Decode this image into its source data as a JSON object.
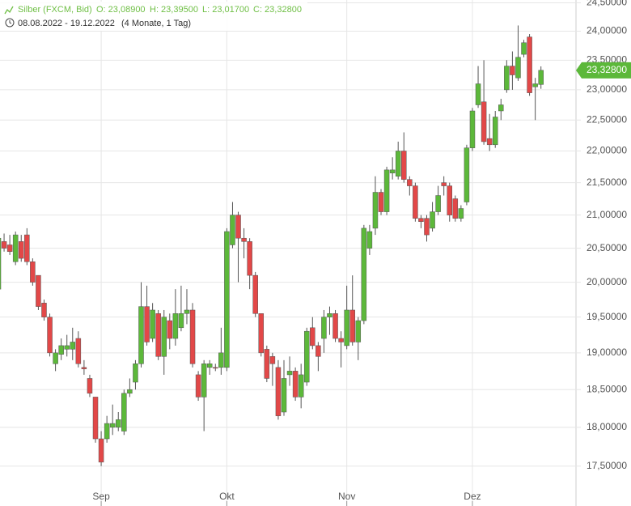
{
  "header": {
    "name": "Silber (FXCM, Bid)",
    "ohlc": [
      "O: 23,08900",
      "H: 23,39500",
      "L: 23,01700",
      "C: 23,32800"
    ],
    "range": "08.08.2022 - 19.12.2022",
    "period": "(4 Monate, 1 Tag)"
  },
  "chart_data": {
    "type": "candlestick",
    "log_scale": true,
    "grid": true,
    "up_color": "#5cb83a",
    "down_color": "#e24848",
    "categories": [
      null,
      null,
      null,
      null,
      null,
      null,
      null,
      null,
      null,
      null,
      null,
      null,
      null,
      null,
      null,
      null,
      null,
      null,
      "Sep",
      null,
      null,
      null,
      null,
      null,
      null,
      null,
      null,
      null,
      null,
      null,
      null,
      null,
      null,
      null,
      null,
      null,
      null,
      null,
      null,
      null,
      "Okt",
      null,
      null,
      null,
      null,
      null,
      null,
      null,
      null,
      null,
      null,
      null,
      null,
      null,
      null,
      null,
      null,
      null,
      null,
      null,
      null,
      "Nov",
      null,
      null,
      null,
      null,
      null,
      null,
      null,
      null,
      null,
      null,
      null,
      null,
      null,
      null,
      null,
      null,
      null,
      null,
      null,
      null,
      null,
      "Dez",
      null,
      null,
      null,
      null,
      null,
      null,
      null,
      null,
      null,
      null,
      null,
      null
    ],
    "open": [
      19.9,
      20.6,
      20.55,
      20.3,
      20.6,
      20.7,
      20.3,
      20.1,
      19.7,
      19.5,
      18.85,
      18.98,
      19.05,
      19.05,
      19.2,
      18.8,
      18.65,
      18.4,
      17.85,
      17.85,
      18.0,
      18.0,
      17.95,
      18.45,
      18.6,
      18.85,
      19.65,
      19.2,
      19.55,
      18.95,
      19.45,
      19.2,
      19.35,
      19.55,
      19.6,
      18.7,
      18.4,
      18.8,
      18.8,
      18.8,
      18.8,
      20.55,
      21.0,
      20.65,
      20.6,
      20.1,
      19.55,
      19.05,
      18.95,
      18.8,
      18.2,
      18.7,
      18.75,
      18.4,
      18.6,
      19.35,
      19.1,
      19.2,
      19.5,
      19.55,
      19.2,
      19.1,
      19.6,
      19.15,
      19.45,
      20.5,
      20.8,
      21.35,
      21.05,
      21.65,
      21.6,
      22.0,
      21.55,
      21.45,
      20.95,
      20.95,
      20.8,
      21.05,
      21.5,
      21.45,
      21.25,
      20.95,
      21.2,
      22.05,
      22.75,
      22.8,
      22.2,
      22.1,
      22.65,
      23.0,
      23.4,
      23.2,
      23.6,
      23.9,
      23.05,
      23.089
    ],
    "high": [
      20.7,
      20.72,
      20.7,
      20.75,
      20.7,
      20.8,
      20.35,
      20.1,
      19.75,
      19.55,
      19.05,
      19.2,
      19.25,
      19.35,
      19.3,
      18.9,
      18.7,
      18.4,
      17.95,
      18.15,
      18.3,
      18.2,
      18.5,
      18.65,
      18.9,
      20.0,
      19.95,
      19.7,
      19.6,
      19.6,
      19.55,
      19.9,
      19.95,
      19.9,
      19.7,
      18.75,
      18.9,
      18.9,
      18.85,
      19.35,
      20.8,
      21.2,
      21.05,
      20.8,
      20.65,
      20.15,
      19.55,
      19.1,
      19.0,
      18.9,
      18.9,
      18.95,
      18.8,
      18.85,
      19.35,
      19.5,
      19.15,
      19.6,
      19.65,
      19.6,
      19.3,
      19.95,
      20.1,
      19.5,
      20.85,
      20.85,
      21.6,
      21.4,
      21.75,
      21.9,
      22.15,
      22.3,
      21.6,
      21.5,
      21.0,
      21.0,
      21.2,
      21.45,
      21.6,
      21.5,
      21.3,
      21.15,
      22.1,
      22.7,
      23.4,
      23.5,
      22.6,
      22.65,
      22.85,
      23.5,
      23.65,
      24.1,
      23.85,
      23.95,
      23.2,
      23.395
    ],
    "low": [
      19.7,
      20.45,
      20.4,
      20.25,
      20.3,
      20.25,
      19.95,
      19.6,
      19.45,
      18.95,
      18.75,
      18.9,
      18.95,
      18.9,
      18.8,
      18.7,
      18.4,
      17.8,
      17.5,
      17.8,
      17.9,
      17.95,
      17.9,
      18.4,
      18.5,
      18.8,
      19.1,
      19.15,
      18.9,
      18.7,
      19.05,
      19.1,
      19.3,
      19.4,
      18.8,
      18.35,
      17.95,
      18.7,
      18.75,
      18.7,
      18.75,
      20.5,
      20.0,
      20.35,
      19.9,
      19.5,
      18.95,
      18.6,
      18.55,
      18.1,
      18.15,
      18.55,
      18.35,
      18.25,
      18.55,
      19.05,
      18.75,
      19.0,
      19.25,
      19.15,
      18.8,
      19.05,
      19.1,
      18.9,
      19.4,
      20.4,
      20.7,
      21.0,
      21.0,
      21.55,
      21.55,
      21.5,
      21.3,
      20.9,
      20.8,
      20.6,
      20.75,
      21.0,
      21.3,
      20.9,
      20.9,
      20.9,
      21.15,
      22.0,
      22.7,
      22.1,
      22.0,
      22.05,
      22.5,
      22.95,
      23.0,
      23.15,
      23.55,
      22.9,
      22.5,
      23.017
    ],
    "close": [
      20.65,
      20.5,
      20.45,
      20.7,
      20.35,
      20.3,
      20.0,
      19.65,
      19.5,
      19.0,
      19.0,
      19.1,
      19.1,
      19.15,
      18.85,
      18.78,
      18.45,
      17.85,
      17.55,
      18.05,
      18.05,
      18.1,
      18.45,
      18.5,
      18.85,
      19.65,
      19.15,
      19.6,
      18.95,
      19.5,
      19.2,
      19.55,
      19.55,
      19.6,
      18.85,
      18.4,
      18.85,
      18.85,
      18.79,
      19.0,
      20.75,
      21.0,
      20.65,
      20.6,
      20.1,
      19.55,
      19.0,
      18.65,
      18.85,
      18.15,
      18.65,
      18.75,
      18.4,
      18.7,
      19.3,
      19.1,
      18.95,
      19.5,
      19.55,
      19.2,
      19.15,
      19.6,
      19.15,
      19.45,
      20.8,
      20.75,
      21.35,
      21.05,
      21.7,
      21.7,
      22.0,
      21.55,
      21.45,
      20.95,
      20.9,
      20.7,
      21.05,
      21.3,
      21.45,
      21.0,
      20.95,
      21.1,
      22.05,
      22.65,
      23.1,
      22.15,
      22.1,
      22.55,
      22.75,
      23.4,
      23.25,
      23.55,
      23.8,
      22.95,
      23.1,
      23.328
    ],
    "ylim": [
      17.0,
      24.55
    ],
    "yticks": [
      {
        "value": 17.5,
        "label": "17,50000"
      },
      {
        "value": 18.0,
        "label": "18,00000"
      },
      {
        "value": 18.5,
        "label": "18,50000"
      },
      {
        "value": 19.0,
        "label": "19,00000"
      },
      {
        "value": 19.5,
        "label": "19,50000"
      },
      {
        "value": 20.0,
        "label": "20,00000"
      },
      {
        "value": 20.5,
        "label": "20,50000"
      },
      {
        "value": 21.0,
        "label": "21,00000"
      },
      {
        "value": 21.5,
        "label": "21,50000"
      },
      {
        "value": 22.0,
        "label": "22,00000"
      },
      {
        "value": 22.5,
        "label": "22,50000"
      },
      {
        "value": 23.0,
        "label": "23,00000"
      },
      {
        "value": 23.5,
        "label": "23,50000"
      },
      {
        "value": 24.0,
        "label": "24,00000"
      },
      {
        "value": 24.5,
        "label": "24,50000"
      }
    ],
    "last_price": {
      "value": 23.328,
      "label": "23,32800",
      "color": "#5cb83a"
    }
  }
}
